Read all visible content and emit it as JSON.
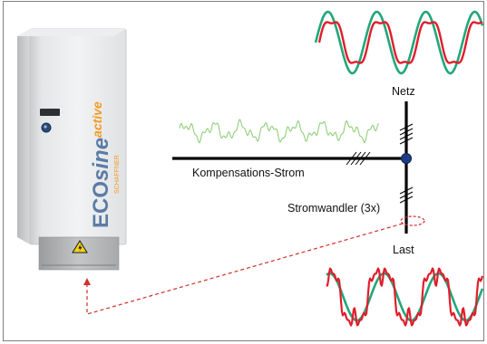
{
  "labels": {
    "netz": "Netz",
    "last": "Last",
    "kompensation": "Kompensations-Strom",
    "stromwandler": "Stromwandler (3x)"
  },
  "device": {
    "brand_prefix": "ECO",
    "brand_main": "sine",
    "brand_suffix": "active",
    "manufacturer": "SCHAFFNER",
    "warning_symbol": "high-voltage-warning-icon"
  },
  "colors": {
    "grid_wave": "#22a77a",
    "distorted_wave": "#e01e2c",
    "compensation_wave": "#8fd07a",
    "bus_line": "#000000",
    "node": "#1f3c88",
    "dashed_link": "#d0302a",
    "brand_blue": "#5c7ca6",
    "brand_orange": "#f39a1e"
  }
}
